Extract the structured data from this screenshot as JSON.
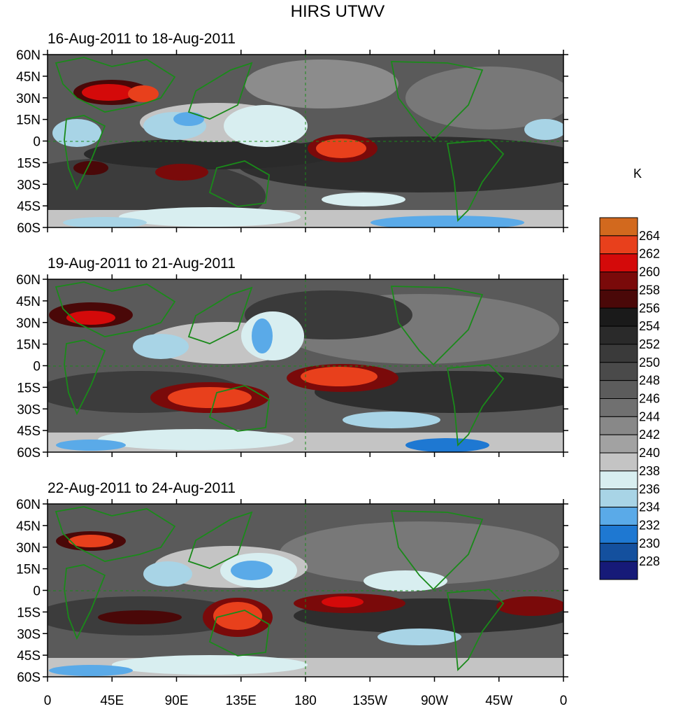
{
  "title": "HIRS UTWV",
  "units": "K",
  "panels": [
    {
      "title": "16-Aug-2011 to 18-Aug-2011"
    },
    {
      "title": "19-Aug-2011 to 21-Aug-2011"
    },
    {
      "title": "22-Aug-2011 to 24-Aug-2011"
    }
  ],
  "lat_ticks": [
    "60N",
    "45N",
    "30N",
    "15N",
    "0",
    "15S",
    "30S",
    "45S",
    "60S"
  ],
  "lon_ticks": [
    "0",
    "45E",
    "90E",
    "135E",
    "180",
    "135W",
    "90W",
    "45W",
    "0"
  ],
  "colorbar": {
    "levels": [
      "264",
      "262",
      "260",
      "258",
      "256",
      "254",
      "252",
      "250",
      "248",
      "246",
      "244",
      "242",
      "240",
      "238",
      "236",
      "234",
      "232",
      "230",
      "228"
    ],
    "colors": [
      "#d2691e",
      "#e8401c",
      "#d40a0a",
      "#7a0a0a",
      "#4a0808",
      "#1a1a1a",
      "#2a2a2a",
      "#3a3a3a",
      "#4a4a4a",
      "#5c5c5c",
      "#707070",
      "#888888",
      "#a2a2a2",
      "#c4c4c4",
      "#d8eef0",
      "#a8d4e6",
      "#5aaae8",
      "#1e78d2",
      "#14509e",
      "#161a78"
    ]
  },
  "colors": {
    "coastline": "#1a8a1a",
    "dashed_lines": "#1a8a1a"
  }
}
